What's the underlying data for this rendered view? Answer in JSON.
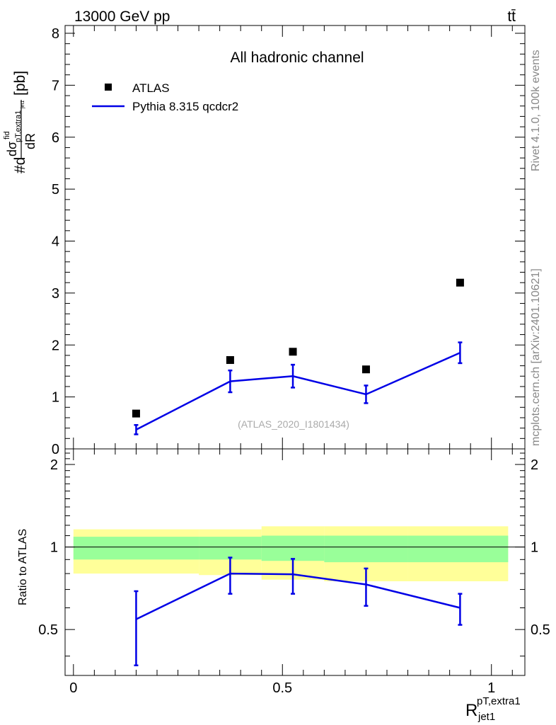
{
  "header": {
    "energy_label": "13000 GeV pp",
    "process_label": "tt̄"
  },
  "side_labels": {
    "rivet": "Rivet 4.1.0,  100k events",
    "mcplots": "mcplots.cern.ch [arXiv:2401.10621]"
  },
  "colors": {
    "mc_line": "#0000e6",
    "data_marker": "#000000",
    "band_outer": "#ffff99",
    "band_inner": "#99ff99"
  },
  "chart_data": [
    {
      "panel": "main",
      "type": "scatter",
      "title": "All hadronic channel",
      "analysis_label": "(ATLAS_2020_I1801434)",
      "ylabel": {
        "prefix": "#d",
        "numer": "dσ",
        "fid": "fid",
        "sub": "pT,extra1",
        "subsub": "jet1",
        "denom": "dR",
        "unit": "[pb]"
      },
      "xlim": [
        -0.02,
        1.08
      ],
      "ylim": [
        0,
        8.15
      ],
      "yticks": [
        0,
        1,
        2,
        3,
        4,
        5,
        6,
        7,
        8
      ],
      "ytick_labels": [
        "0",
        "1",
        "2",
        "3",
        "4",
        "5",
        "6",
        "7",
        "8"
      ],
      "legend": [
        {
          "label": "ATLAS",
          "kind": "marker"
        },
        {
          "label": "Pythia 8.315 qcdcr2",
          "kind": "line"
        }
      ],
      "series": [
        {
          "name": "ATLAS",
          "x": [
            0.15,
            0.375,
            0.525,
            0.7,
            0.925
          ],
          "y": [
            0.68,
            1.71,
            1.87,
            1.53,
            3.2
          ]
        },
        {
          "name": "Pythia 8.315 qcdcr2",
          "x": [
            0.15,
            0.375,
            0.525,
            0.7,
            0.925
          ],
          "y": [
            0.37,
            1.3,
            1.4,
            1.05,
            1.85
          ],
          "err": [
            0.09,
            0.21,
            0.22,
            0.17,
            0.2
          ]
        }
      ]
    },
    {
      "panel": "ratio",
      "type": "line",
      "ylabel": "Ratio to ATLAS",
      "xlabel": {
        "main": "R",
        "sup": "pT,extra1",
        "sub": "jet1"
      },
      "xlim": [
        -0.02,
        1.08
      ],
      "ylim": [
        0.34,
        2.28
      ],
      "xticks": [
        0,
        0.5,
        1
      ],
      "xtick_labels": [
        "0",
        "0.5",
        "1"
      ],
      "yticks": [
        0.5,
        1,
        2
      ],
      "ytick_labels": [
        "0.5",
        "1",
        "2"
      ],
      "bands": [
        {
          "x_lo": 0.0,
          "x_hi": 0.3,
          "outer_lo": 0.8,
          "outer_hi": 1.16,
          "inner_lo": 0.9,
          "inner_hi": 1.09
        },
        {
          "x_lo": 0.3,
          "x_hi": 0.45,
          "outer_lo": 0.79,
          "outer_hi": 1.16,
          "inner_lo": 0.9,
          "inner_hi": 1.09
        },
        {
          "x_lo": 0.45,
          "x_hi": 0.6,
          "outer_lo": 0.76,
          "outer_hi": 1.19,
          "inner_lo": 0.89,
          "inner_hi": 1.1
        },
        {
          "x_lo": 0.6,
          "x_hi": 0.8,
          "outer_lo": 0.75,
          "outer_hi": 1.19,
          "inner_lo": 0.88,
          "inner_hi": 1.1
        },
        {
          "x_lo": 0.8,
          "x_hi": 1.04,
          "outer_lo": 0.75,
          "outer_hi": 1.19,
          "inner_lo": 0.88,
          "inner_hi": 1.1
        }
      ],
      "series": [
        {
          "name": "Pythia 8.315 qcdcr2",
          "x": [
            0.15,
            0.375,
            0.525,
            0.7,
            0.925
          ],
          "y": [
            0.545,
            0.8,
            0.795,
            0.73,
            0.6
          ],
          "err_lo": [
            0.175,
            0.125,
            0.12,
            0.12,
            0.08
          ],
          "err_hi": [
            0.145,
            0.115,
            0.11,
            0.105,
            0.075
          ]
        }
      ]
    }
  ]
}
